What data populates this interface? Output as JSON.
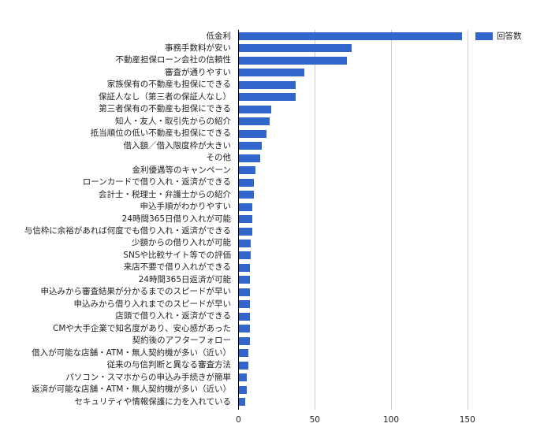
{
  "chart_data": {
    "type": "bar",
    "orientation": "horizontal",
    "title": "",
    "xlabel": "",
    "ylabel": "",
    "xlim": [
      0,
      160
    ],
    "x_ticks": [
      0,
      50,
      100,
      150
    ],
    "grid": true,
    "legend_position": "right",
    "colors": {
      "series": "#3366cc",
      "grid": "#cccccc",
      "axis": "#000000"
    },
    "categories": [
      "低金利",
      "事務手数料が安い",
      "不動産担保ローン会社の信頼性",
      "審査が通りやすい",
      "家族保有の不動産も担保にできる",
      "保証人なし（第三者の保証人なし）",
      "第三者保有の不動産も担保にできる",
      "知人・友人・取引先からの紹介",
      "抵当順位の低い不動産も担保にできる",
      "借入額／借入限度枠が大きい",
      "その他",
      "金利優遇等のキャンペーン",
      "ローンカードで借り入れ・返済ができる",
      "会計士・税理士・弁護士からの紹介",
      "申込手順がわかりやすい",
      "24時間365日借り入れが可能",
      "与信枠に余裕があれば何度でも借り入れ・返済ができる",
      "少額からの借り入れが可能",
      "SNSや比較サイト等での評価",
      "来店不要で借り入れができる",
      "24時間365日返済が可能",
      "申込みから審査結果が分かるまでのスピードが早い",
      "申込みから借り入れまでのスピードが早い",
      "店頭で借り入れ・返済ができる",
      "CMや大手企業で知名度があり、安心感があった",
      "契約後のアフターフォロー",
      "借入が可能な店舗・ATM・無人契約機が多い（近い）",
      "従来の与信判断と異なる審査方法",
      "パソコン・スマホからの申込み手続きが簡単",
      "返済が可能な店舗・ATM・無人契約機が多い（近い）",
      "セキュリティや情報保護に力を入れている"
    ],
    "series": [
      {
        "name": "回答数",
        "values": [
          146,
          74,
          71,
          43,
          37,
          37,
          21,
          20,
          18,
          15,
          14,
          11,
          10,
          10,
          9,
          9,
          9,
          8,
          8,
          7,
          7,
          7,
          7,
          7,
          7,
          7,
          6,
          6,
          5,
          5,
          4
        ]
      }
    ]
  }
}
